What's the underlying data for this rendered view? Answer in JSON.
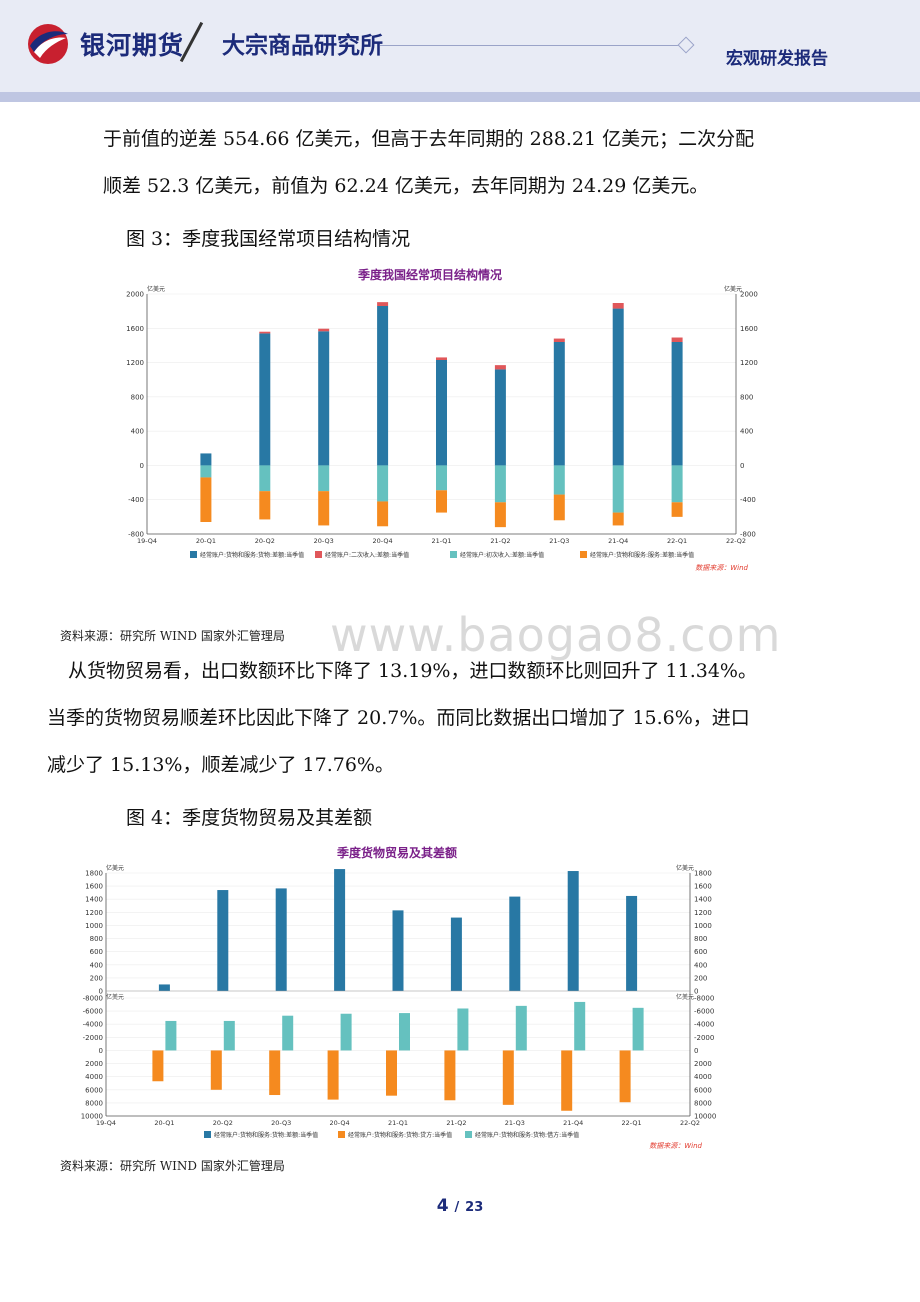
{
  "header": {
    "brand": "银河期货",
    "institute": "大宗商品研究所",
    "report_type": "宏观研发报告"
  },
  "body": {
    "para1_line1": "于前值的逆差 554.66 亿美元，但高于去年同期的 288.21 亿美元；二次分配",
    "para1_line2": "顺差 52.3 亿美元，前值为 62.24 亿美元，去年同期为 24.29 亿美元。",
    "fig3_title": "图 3：季度我国经常项目结构情况",
    "fig3_source": "资料来源：研究所 WIND 国家外汇管理局",
    "para2_line1": "从货物贸易看，出口数额环比下降了 13.19%，进口数额环比则回升了 11.34%。",
    "para2_line2": "当季的货物贸易顺差环比因此下降了 20.7%。而同比数据出口增加了 15.6%，进口",
    "para2_line3": "减少了 15.13%，顺差减少了 17.76%。",
    "fig4_title": "图 4：季度货物贸易及其差额",
    "fig4_source": "资料来源：研究所 WIND 国家外汇管理局",
    "watermark": "www.baogao8.com"
  },
  "footer": {
    "page": "4",
    "sep": "/",
    "total": "23"
  },
  "colors": {
    "navy": "#1c2b7a",
    "teal": "#2878a4",
    "red": "#e0575a",
    "aqua": "#65c1bf",
    "orange": "#f58a1f",
    "title_purple": "#7a2089"
  },
  "chart_data": [
    {
      "type": "bar",
      "title": "季度我国经常项目结构情况",
      "ylabel": "亿美元",
      "ylim": [
        -800,
        2000
      ],
      "yticks": [
        "2000",
        "1600",
        "1200",
        "800",
        "400",
        "0",
        "-400",
        "-800"
      ],
      "categories": [
        "20-Q1",
        "20-Q2",
        "20-Q3",
        "20-Q4",
        "21-Q1",
        "21-Q2",
        "21-Q3",
        "21-Q4",
        "22-Q1"
      ],
      "x_ticks": [
        "19-Q4",
        "20-Q1",
        "20-Q2",
        "20-Q3",
        "20-Q4",
        "21-Q1",
        "21-Q2",
        "21-Q3",
        "21-Q4",
        "22-Q1",
        "22-Q2"
      ],
      "series": [
        {
          "name": "经常账户:货物和服务:货物:差额:当季值",
          "color": "#2878a4",
          "values": [
            140,
            1540,
            1565,
            1860,
            1230,
            1120,
            1440,
            1830,
            1440
          ]
        },
        {
          "name": "经常账户:二次收入:差额:当季值",
          "color": "#e0575a",
          "values": [
            0,
            20,
            30,
            45,
            30,
            50,
            40,
            65,
            52.3
          ]
        },
        {
          "name": "经常账户:初次收入:差额:当季值",
          "color": "#65c1bf",
          "values": [
            -140,
            -300,
            -300,
            -420,
            -290,
            -430,
            -340,
            -550,
            -430
          ]
        },
        {
          "name": "经常账户:货物和服务:服务:差额:当季值",
          "color": "#f58a1f",
          "values": [
            -520,
            -330,
            -400,
            -290,
            -260,
            -290,
            -300,
            -150,
            -170
          ]
        }
      ],
      "source_note": "数据来源：Wind"
    },
    {
      "type": "bar",
      "title": "季度货物贸易及其差额",
      "ylabel": "亿美元",
      "top_panel": {
        "ylim": [
          0,
          1800
        ],
        "yticks": [
          "1800",
          "1600",
          "1400",
          "1200",
          "1000",
          "800",
          "600",
          "400",
          "200",
          "0"
        ]
      },
      "bottom_panel": {
        "ylim": [
          -8000,
          10000
        ],
        "yticks": [
          "-8000",
          "-6000",
          "-4000",
          "-2000",
          "0",
          "2000",
          "4000",
          "6000",
          "8000",
          "10000"
        ]
      },
      "categories": [
        "20-Q1",
        "20-Q2",
        "20-Q3",
        "20-Q4",
        "21-Q1",
        "21-Q2",
        "21-Q3",
        "21-Q4",
        "22-Q1"
      ],
      "x_ticks": [
        "19-Q4",
        "20-Q1",
        "20-Q2",
        "20-Q3",
        "20-Q4",
        "21-Q1",
        "21-Q2",
        "21-Q3",
        "21-Q4",
        "22-Q1",
        "22-Q2"
      ],
      "series": [
        {
          "name": "经常账户:货物和服务:货物:差额:当季值",
          "color": "#2878a4",
          "panel": "top",
          "values": [
            100,
            1540,
            1565,
            1860,
            1230,
            1120,
            1440,
            1830,
            1450
          ]
        },
        {
          "name": "经常账户:货物和服务:货物:贷方:当季值",
          "color": "#f58a1f",
          "panel": "bottom",
          "values": [
            4700,
            6000,
            6800,
            7500,
            6900,
            7600,
            8300,
            9200,
            7900
          ]
        },
        {
          "name": "经常账户:货物和服务:货物:借方:当季值",
          "color": "#65c1bf",
          "panel": "bottom",
          "values": [
            -4500,
            -4500,
            -5300,
            -5600,
            -5700,
            -6400,
            -6800,
            -7400,
            -6500
          ]
        }
      ],
      "source_note": "数据来源：Wind"
    }
  ]
}
